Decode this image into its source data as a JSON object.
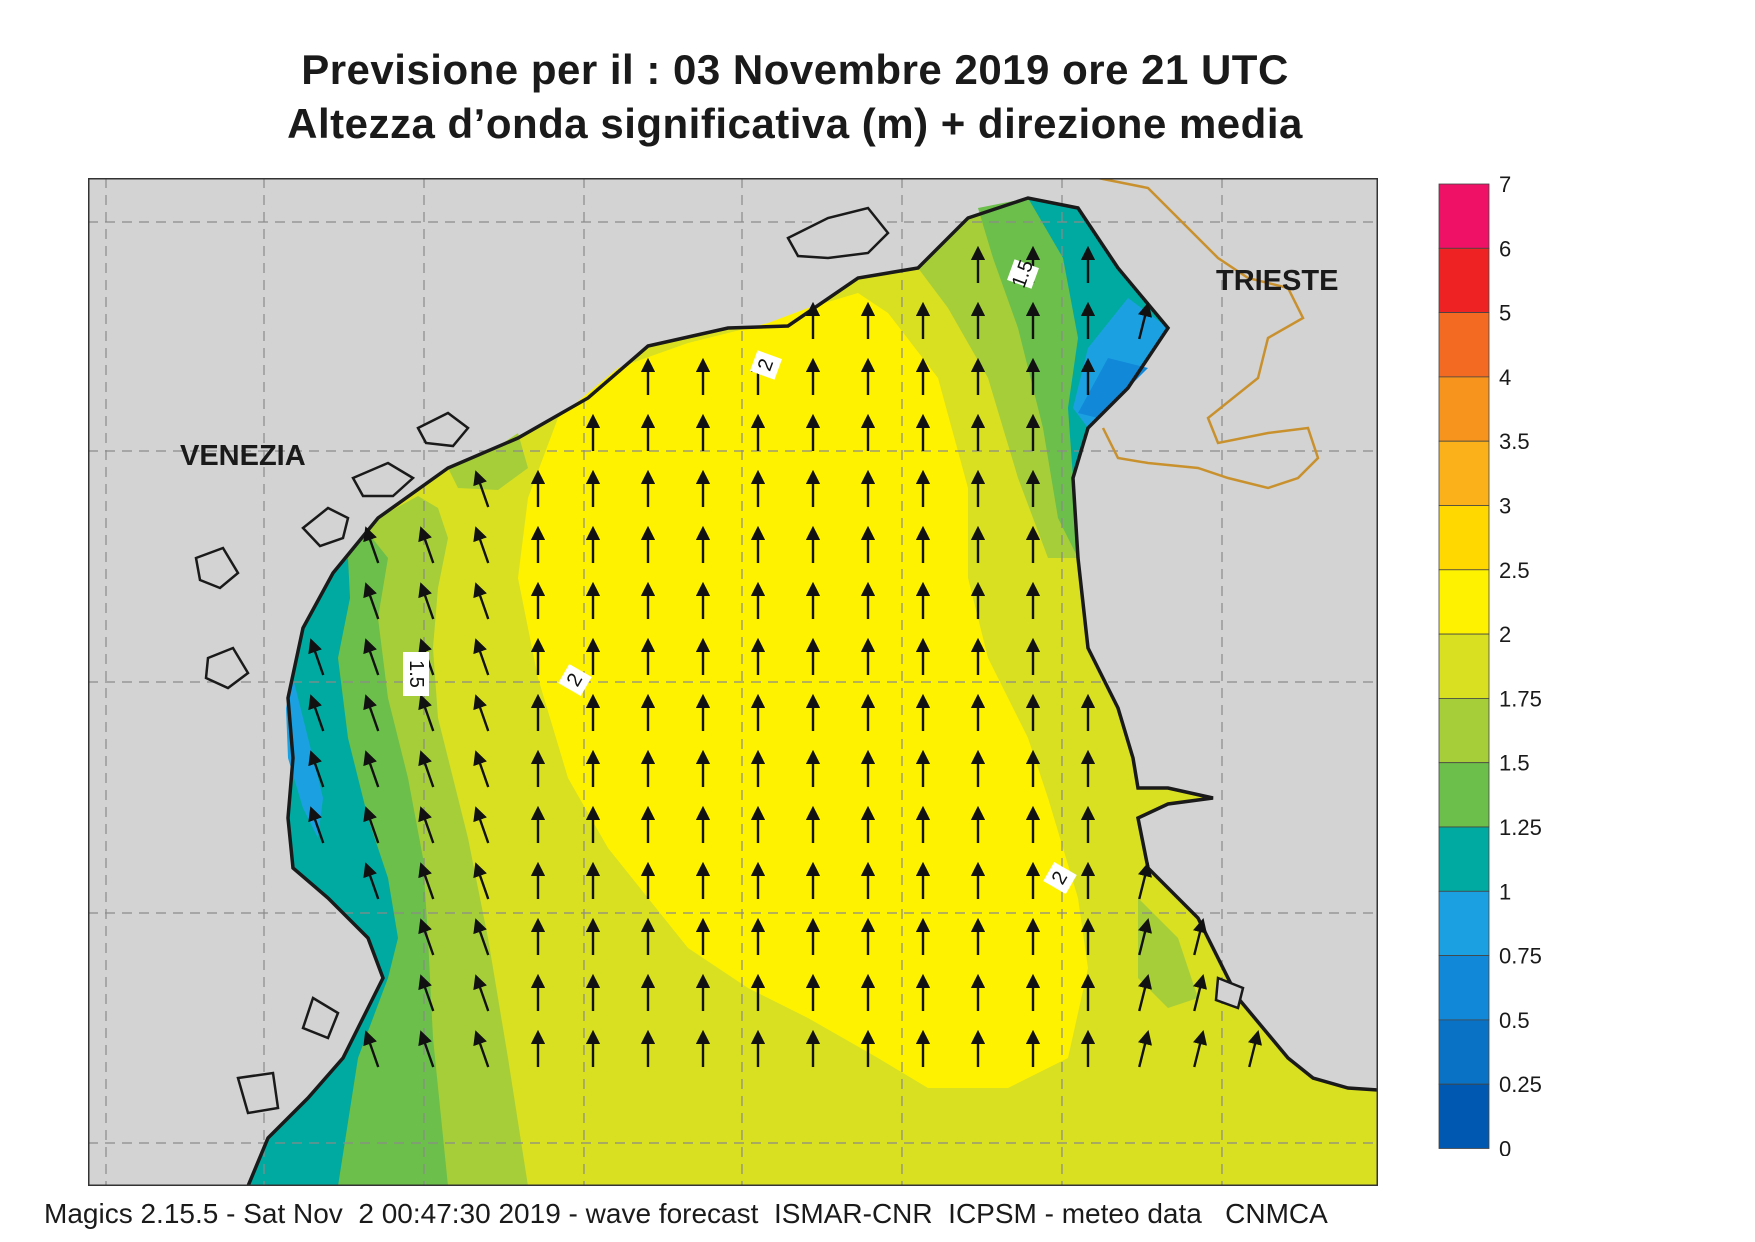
{
  "title": {
    "line1": "Previsione per il  :  03 Novembre  2019   ore 21 UTC",
    "line2": "Altezza d’onda significativa (m) + direzione media"
  },
  "map": {
    "cities": [
      {
        "name": "VENEZIA"
      },
      {
        "name": "TRIESTE"
      }
    ],
    "contour_labels": [
      "2",
      "1.5",
      "2",
      "2",
      "1.5"
    ],
    "arrow_direction": "north",
    "land_color": "#d3d3d3",
    "coast_color": "#1a1a1a",
    "border_color": "#c9912e"
  },
  "legend": {
    "ticks": [
      "7",
      "6",
      "5",
      "4",
      "3.5",
      "3",
      "2.5",
      "2",
      "1.75",
      "1.5",
      "1.25",
      "1",
      "0.75",
      "0.5",
      "0.25",
      "0"
    ],
    "colors": [
      "#ee1166",
      "#ee2222",
      "#f36a22",
      "#f7941d",
      "#fbb21a",
      "#ffd800",
      "#fff200",
      "#d9e021",
      "#a6ce39",
      "#6cbf4a",
      "#00aaa0",
      "#1ba1e2",
      "#1188d8",
      "#0a72c4",
      "#0058b0"
    ]
  },
  "footer": "Magics 2.15.5 - Sat Nov  2 00:47:30 2019 - wave forecast  ISMAR-CNR  ICPSM - meteo data   CNMCA"
}
